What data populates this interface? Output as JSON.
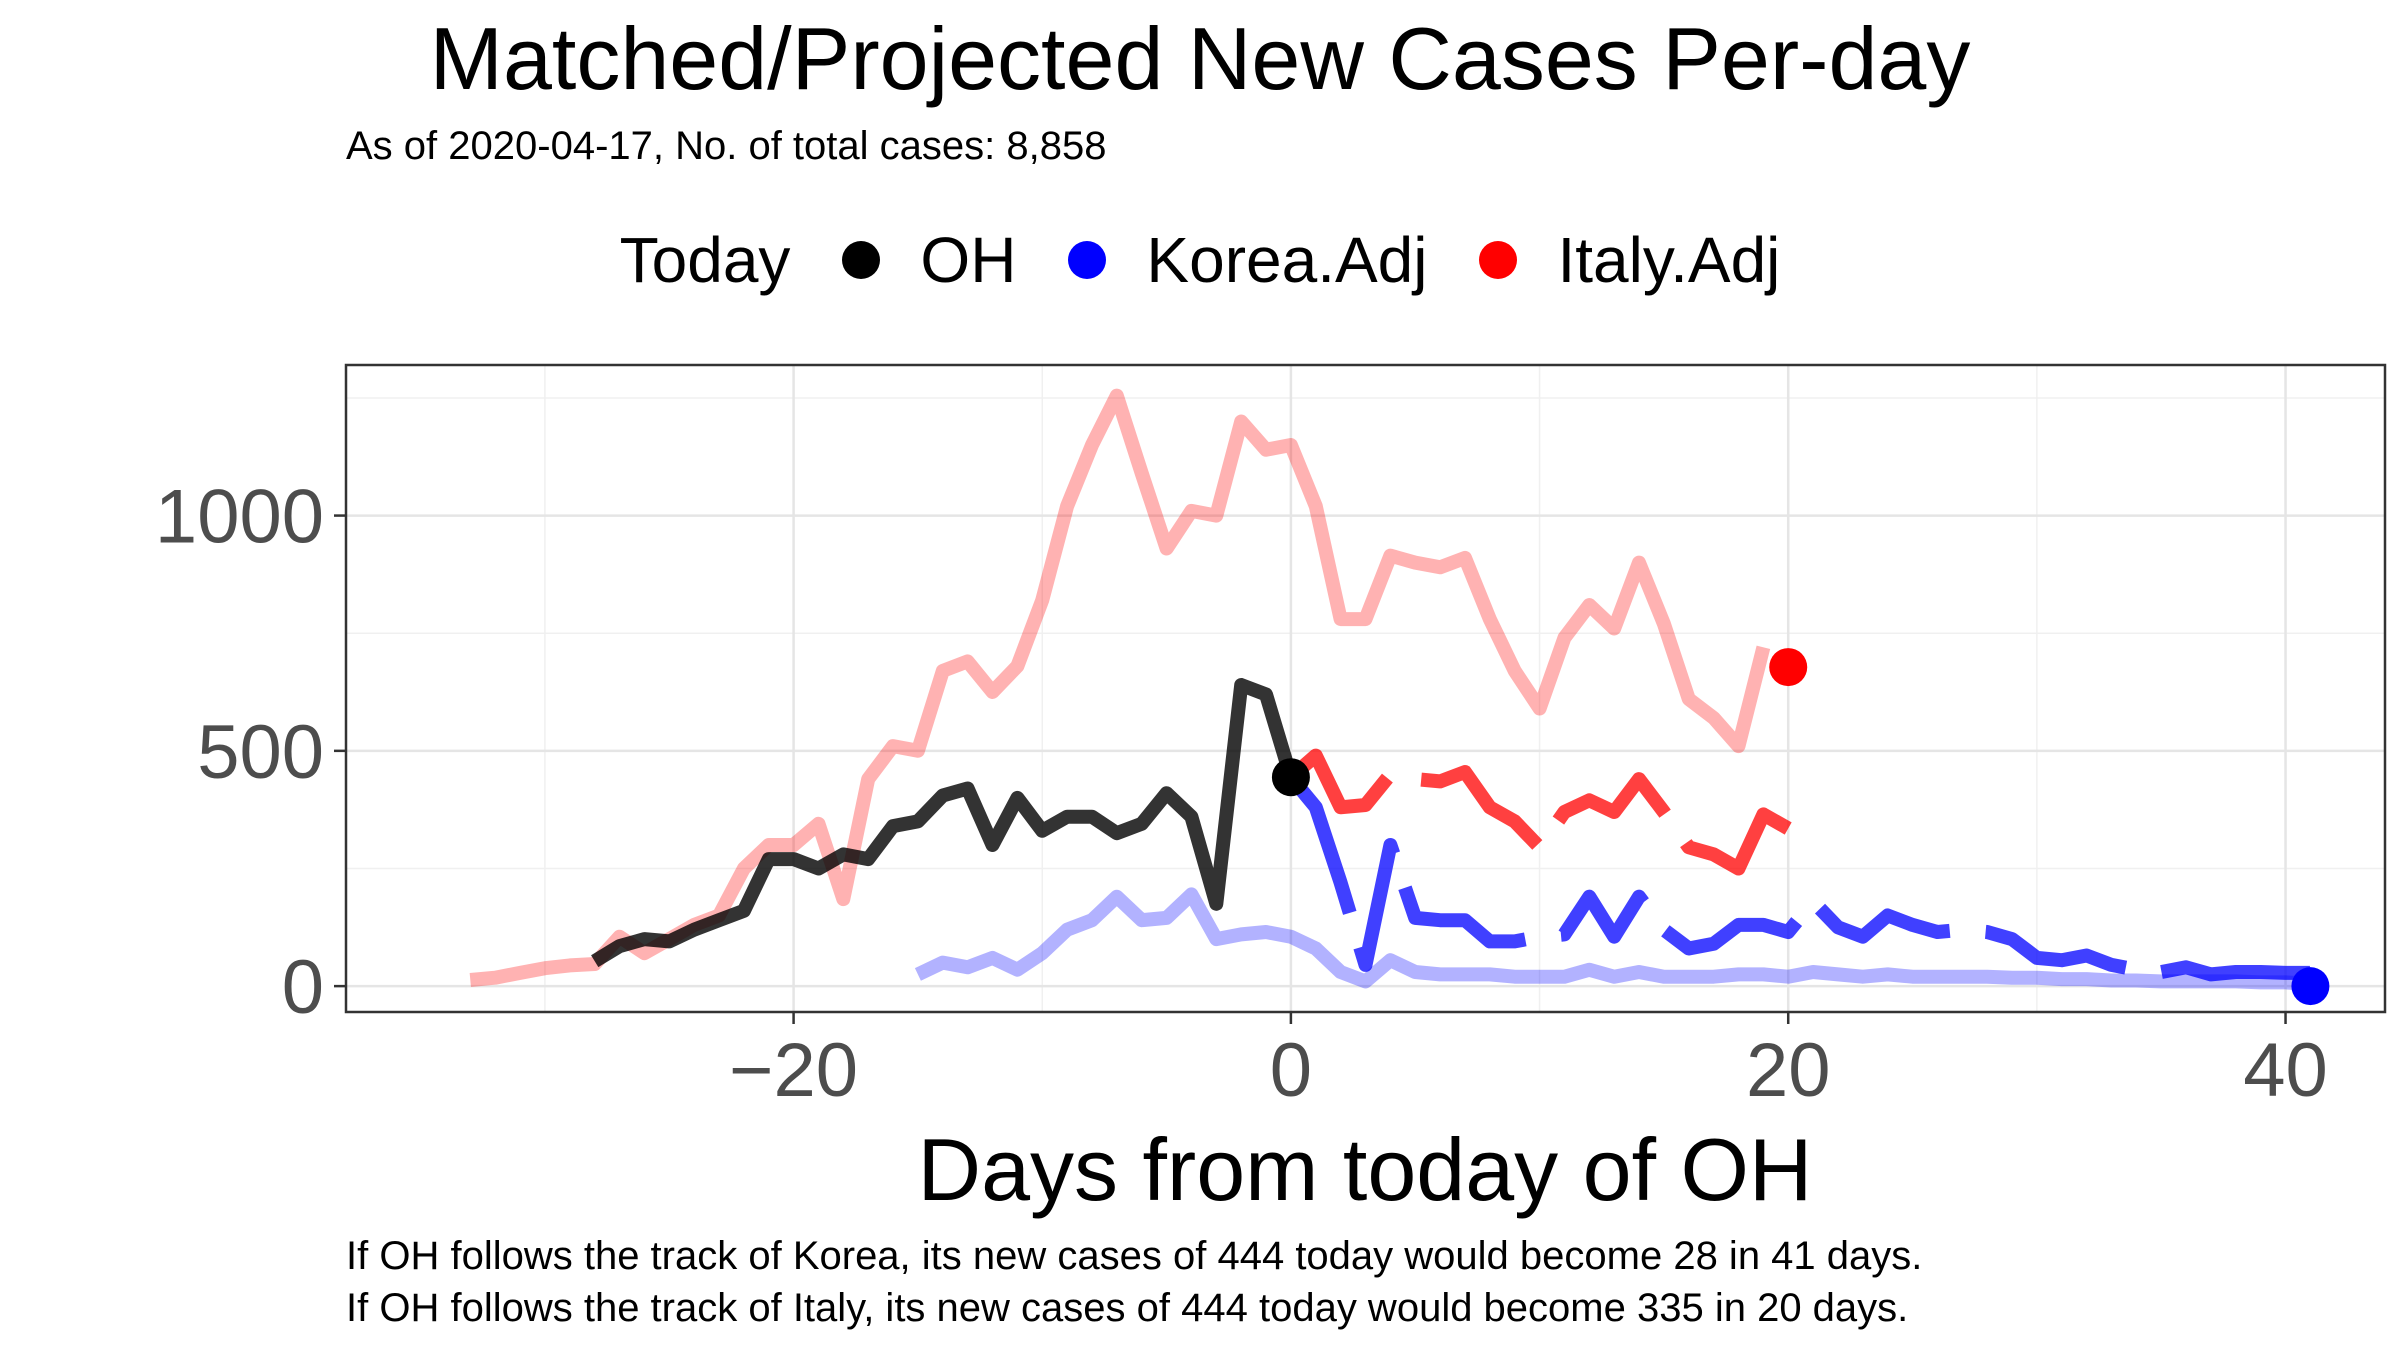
{
  "title": "Matched/Projected New Cases Per-day",
  "subtitle": "As of 2020-04-17, No. of total cases: 8,858",
  "legend": {
    "title": "Today",
    "items": [
      {
        "label": "OH",
        "color": "#000000"
      },
      {
        "label": "Korea.Adj",
        "color": "#0000ff"
      },
      {
        "label": "Italy.Adj",
        "color": "#ff0000"
      }
    ]
  },
  "caption": {
    "line1": "If OH follows the track of Korea, its new cases of 444 today would become 28 in 41 days.",
    "line2": "If OH follows the track of Italy, its new cases of 444 today would become 335 in 20 days."
  },
  "chart_data": {
    "type": "line",
    "title": "Matched/Projected New Cases Per-day",
    "xlabel": "Days from today of OH",
    "ylabel": "",
    "xlim": [
      -38,
      44
    ],
    "ylim": [
      -55,
      1320
    ],
    "xticks": [
      -20,
      0,
      20,
      40
    ],
    "yticks": [
      0,
      500,
      1000
    ],
    "grid": true,
    "legend_position": "top",
    "series": [
      {
        "name": "Italy.Adj (matched history)",
        "color": "#ff0000",
        "opacity": 0.3,
        "style": "solid",
        "x": [
          -33,
          -32,
          -31,
          -30,
          -29,
          -28,
          -27,
          -26,
          -25,
          -24,
          -23,
          -22,
          -21,
          -20,
          -19,
          -18,
          -17,
          -16,
          -15,
          -14,
          -13,
          -12,
          -11,
          -10,
          -9,
          -8,
          -7,
          -6,
          -5,
          -4,
          -3,
          -2,
          -1,
          0,
          1,
          2,
          3,
          4,
          5,
          6,
          7,
          8,
          9,
          10,
          11,
          12,
          13,
          14,
          15,
          16,
          17,
          18,
          19
        ],
        "y": [
          13,
          18,
          28,
          38,
          44,
          47,
          105,
          70,
          100,
          130,
          150,
          250,
          300,
          300,
          345,
          185,
          440,
          510,
          500,
          670,
          690,
          625,
          680,
          820,
          1020,
          1150,
          1255,
          1090,
          930,
          1010,
          1000,
          1200,
          1140,
          1150,
          1020,
          780,
          780,
          915,
          900,
          890,
          910,
          780,
          670,
          590,
          740,
          810,
          760,
          900,
          770,
          610,
          570,
          510,
          720
        ],
        "linewidth": 14
      },
      {
        "name": "Korea.Adj (matched history)",
        "color": "#0000ff",
        "opacity": 0.3,
        "style": "solid",
        "x": [
          -15,
          -14,
          -13,
          -12,
          -11,
          -10,
          -9,
          -8,
          -7,
          -6,
          -5,
          -4,
          -3,
          -2,
          -1,
          0,
          1,
          2,
          3,
          4,
          5,
          6,
          7,
          8,
          9,
          10,
          11,
          12,
          13,
          14,
          15,
          16,
          17,
          18,
          19,
          20,
          21,
          22,
          23,
          24,
          25,
          26,
          27,
          28,
          29,
          30,
          31,
          32,
          33,
          34,
          35,
          36,
          37,
          38,
          39,
          40,
          41
        ],
        "y": [
          25,
          50,
          40,
          60,
          35,
          70,
          120,
          140,
          190,
          140,
          145,
          195,
          100,
          110,
          115,
          105,
          80,
          30,
          10,
          55,
          30,
          25,
          25,
          25,
          20,
          20,
          20,
          35,
          20,
          30,
          20,
          20,
          20,
          25,
          25,
          20,
          30,
          25,
          20,
          25,
          20,
          20,
          20,
          20,
          18,
          18,
          15,
          15,
          12,
          12,
          10,
          10,
          10,
          10,
          8,
          8,
          5
        ],
        "linewidth": 14
      },
      {
        "name": "OH",
        "color": "#000000",
        "opacity": 0.8,
        "style": "solid",
        "x": [
          -28,
          -27,
          -26,
          -25,
          -24,
          -23,
          -22,
          -21,
          -20,
          -19,
          -18,
          -17,
          -16,
          -15,
          -14,
          -13,
          -12,
          -11,
          -10,
          -9,
          -8,
          -7,
          -6,
          -5,
          -4,
          -3,
          -2,
          -1,
          0
        ],
        "y": [
          53,
          85,
          100,
          95,
          120,
          140,
          160,
          270,
          270,
          250,
          280,
          270,
          340,
          350,
          405,
          420,
          300,
          400,
          330,
          360,
          360,
          325,
          345,
          410,
          360,
          175,
          640,
          620,
          444
        ],
        "linewidth": 14
      },
      {
        "name": "Korea.Adj (projected)",
        "color": "#0000ff",
        "opacity": 0.75,
        "style": "dashed",
        "x": [
          0,
          1,
          2,
          3,
          4,
          5,
          6,
          7,
          8,
          9,
          10,
          11,
          12,
          13,
          14,
          15,
          16,
          17,
          18,
          19,
          20,
          21,
          22,
          23,
          24,
          25,
          26,
          27,
          28,
          29,
          30,
          31,
          32,
          33,
          34,
          35,
          36,
          37,
          38,
          39,
          40,
          41
        ],
        "y": [
          444,
          380,
          220,
          45,
          300,
          145,
          140,
          140,
          95,
          95,
          105,
          110,
          190,
          105,
          190,
          120,
          80,
          90,
          130,
          130,
          115,
          180,
          125,
          105,
          150,
          130,
          115,
          120,
          115,
          100,
          60,
          55,
          65,
          45,
          35,
          30,
          40,
          25,
          30,
          30,
          28,
          28
        ],
        "linewidth": 14
      },
      {
        "name": "Italy.Adj (projected)",
        "color": "#ff0000",
        "opacity": 0.75,
        "style": "dashed",
        "x": [
          0,
          1,
          2,
          3,
          4,
          5,
          6,
          7,
          8,
          9,
          10,
          11,
          12,
          13,
          14,
          15,
          16,
          17,
          18,
          19,
          20
        ],
        "y": [
          444,
          490,
          380,
          385,
          450,
          440,
          435,
          455,
          380,
          350,
          295,
          370,
          395,
          370,
          440,
          370,
          295,
          280,
          250,
          365,
          335
        ],
        "linewidth": 14
      }
    ],
    "today_points": [
      {
        "label": "OH",
        "x": 0,
        "y": 444,
        "color": "#000000"
      },
      {
        "label": "Korea.Adj",
        "x": 41,
        "y": 0,
        "color": "#0000ff"
      },
      {
        "label": "Italy.Adj",
        "x": 20,
        "y": 678,
        "color": "#ff0000"
      }
    ]
  }
}
